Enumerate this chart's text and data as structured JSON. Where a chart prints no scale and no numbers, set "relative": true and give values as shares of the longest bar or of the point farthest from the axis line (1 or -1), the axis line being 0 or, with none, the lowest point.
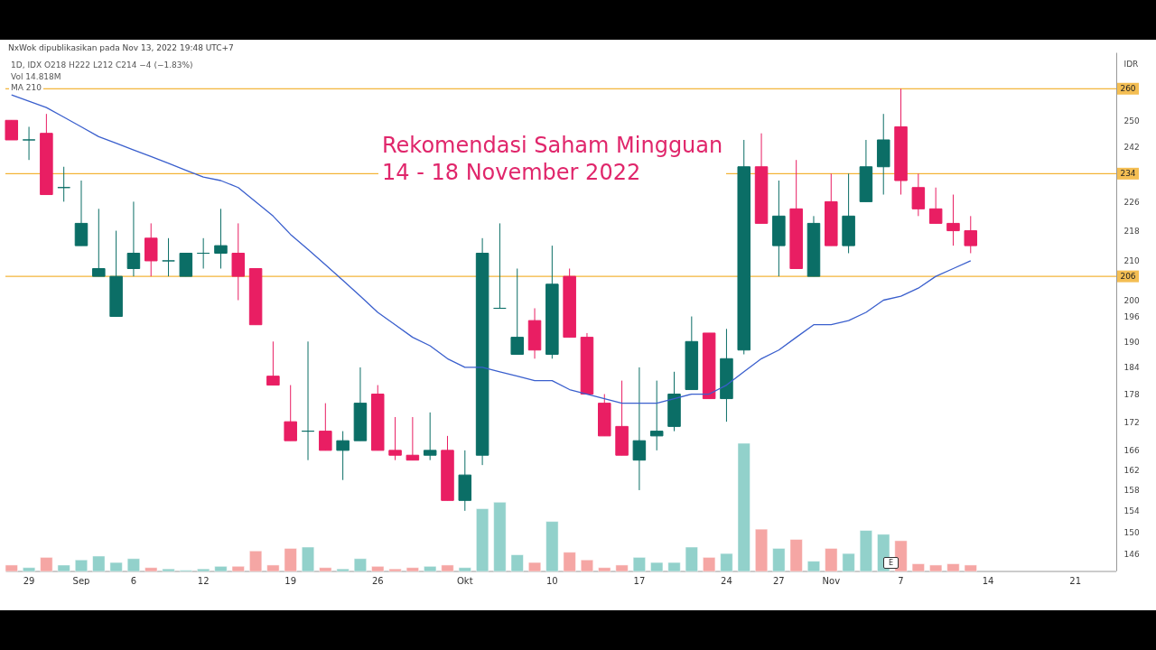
{
  "chart_data": [
    {
      "type": "candlestick",
      "title": "Rekomendasi Saham Mingguan",
      "subtitle": "14 - 18 November 2022",
      "ylabel": "IDR",
      "categories": [
        null,
        "29",
        null,
        null,
        "Sep",
        null,
        null,
        "6",
        null,
        null,
        null,
        "12",
        null,
        null,
        null,
        null,
        "19",
        null,
        null,
        null,
        null,
        "26",
        null,
        null,
        null,
        null,
        "Okt",
        null,
        null,
        null,
        null,
        "10",
        null,
        null,
        null,
        null,
        "17",
        null,
        null,
        null,
        null,
        "24",
        null,
        null,
        "27",
        null,
        null,
        "Nov",
        null,
        null,
        null,
        "7",
        null,
        null,
        null,
        null,
        "14",
        null,
        null,
        null,
        null,
        "21",
        null,
        null
      ],
      "ohlc": [
        [
          250,
          250,
          244,
          244
        ],
        [
          244,
          248,
          238,
          244
        ],
        [
          246,
          252,
          228,
          228
        ],
        [
          230,
          236,
          226,
          230
        ],
        [
          214,
          232,
          214,
          220
        ],
        [
          206,
          224,
          206,
          208
        ],
        [
          196,
          218,
          196,
          206
        ],
        [
          208,
          226,
          206,
          212
        ],
        [
          216,
          220,
          206,
          210
        ],
        [
          210,
          216,
          206,
          210
        ],
        [
          206,
          212,
          206,
          212
        ],
        [
          212,
          216,
          208,
          212
        ],
        [
          212,
          224,
          208,
          214
        ],
        [
          212,
          220,
          200,
          206
        ],
        [
          208,
          208,
          194,
          194
        ],
        [
          182,
          190,
          180,
          180
        ],
        [
          172,
          180,
          168,
          168
        ],
        [
          170,
          190,
          164,
          170
        ],
        [
          170,
          176,
          166,
          166
        ],
        [
          166,
          170,
          160,
          168
        ],
        [
          168,
          184,
          168,
          176
        ],
        [
          178,
          180,
          166,
          166
        ],
        [
          166,
          173,
          164,
          165
        ],
        [
          165,
          173,
          164,
          164
        ],
        [
          165,
          174,
          164,
          166
        ],
        [
          166,
          169,
          156,
          156
        ],
        [
          156,
          166,
          154,
          161
        ],
        [
          165,
          216,
          163,
          212
        ],
        [
          198,
          220,
          198,
          198
        ],
        [
          187,
          208,
          187,
          191
        ],
        [
          195,
          198,
          186,
          188
        ],
        [
          187,
          214,
          186,
          204
        ],
        [
          206,
          208,
          191,
          191
        ],
        [
          191,
          192,
          178,
          178
        ],
        [
          176,
          178,
          169,
          169
        ],
        [
          171,
          181,
          165,
          165
        ],
        [
          164,
          184,
          158,
          168
        ],
        [
          169,
          181,
          166,
          170
        ],
        [
          171,
          183,
          170,
          178
        ],
        [
          179,
          196,
          179,
          190
        ],
        [
          192,
          192,
          177,
          177
        ],
        [
          177,
          193,
          172,
          186
        ],
        [
          188,
          244,
          187,
          236
        ],
        [
          236,
          246,
          220,
          220
        ],
        [
          214,
          232,
          206,
          222
        ],
        [
          224,
          238,
          208,
          208
        ],
        [
          206,
          222,
          206,
          220
        ],
        [
          226,
          234,
          214,
          214
        ],
        [
          214,
          234,
          212,
          222
        ],
        [
          226,
          244,
          226,
          236
        ],
        [
          236,
          252,
          228,
          244
        ],
        [
          248,
          260,
          228,
          232
        ],
        [
          230,
          234,
          222,
          224
        ],
        [
          224,
          230,
          220,
          220
        ],
        [
          220,
          228,
          214,
          218
        ],
        [
          218,
          222,
          212,
          214
        ],
        null,
        null,
        null,
        null,
        null,
        null,
        null,
        null
      ],
      "colors": [
        "#e91e63",
        "#0b6e66",
        "#e91e63",
        "#0b6e66",
        "#0b6e66",
        "#0b6e66",
        "#0b6e66",
        "#0b6e66",
        "#e91e63",
        "#0b6e66",
        "#0b6e66",
        "#0b6e66",
        "#0b6e66",
        "#e91e63",
        "#e91e63",
        "#e91e63",
        "#e91e63",
        "#0b6e66",
        "#e91e63",
        "#0b6e66",
        "#0b6e66",
        "#e91e63",
        "#e91e63",
        "#e91e63",
        "#0b6e66",
        "#e91e63",
        "#0b6e66",
        "#0b6e66",
        "#0b6e66",
        "#0b6e66",
        "#e91e63",
        "#0b6e66",
        "#e91e63",
        "#e91e63",
        "#e91e63",
        "#e91e63",
        "#0b6e66",
        "#0b6e66",
        "#0b6e66",
        "#0b6e66",
        "#e91e63",
        "#0b6e66",
        "#0b6e66",
        "#e91e63",
        "#0b6e66",
        "#e91e63",
        "#0b6e66",
        "#e91e63",
        "#0b6e66",
        "#0b6e66",
        "#0b6e66",
        "#e91e63",
        "#e91e63",
        "#e91e63",
        "#e91e63",
        "#e91e63",
        null,
        null,
        null,
        null,
        null,
        null,
        null,
        null
      ],
      "series": [
        {
          "type": "line",
          "color": "#3a5fcd",
          "values": [
            258,
            256,
            254,
            251,
            248,
            245,
            243,
            241,
            239,
            237,
            235,
            233,
            232,
            230,
            226,
            222,
            217,
            213,
            209,
            205,
            201,
            197,
            194,
            191,
            189,
            186,
            184,
            184,
            183,
            182,
            181,
            181,
            179,
            178,
            177,
            176,
            176,
            176,
            177,
            178,
            178,
            180,
            183,
            186,
            188,
            191,
            194,
            194,
            195,
            197,
            200,
            201,
            203,
            206,
            208,
            210,
            null,
            null,
            null,
            null,
            null,
            null,
            null,
            null
          ]
        }
      ],
      "log": true,
      "ylim": [
        143,
        272
      ],
      "yticks": [
        146,
        150,
        154,
        158,
        162,
        166,
        172,
        178,
        184,
        190,
        196,
        200,
        210,
        218,
        226,
        242,
        250
      ],
      "ref_lines": [
        {
          "axis": "y",
          "value": 260,
          "label": "260",
          "color": "#f0a30a"
        },
        {
          "axis": "y",
          "value": 234,
          "label": "234",
          "color": "#f0a30a"
        },
        {
          "axis": "y",
          "value": 206,
          "label": "206",
          "color": "#f0a30a"
        }
      ],
      "annotations": [
        "NxWok dipublikasikan pada Nov 13, 2022 19:48 UTC+7",
        "1D, IDX  O218  H222  L212  C214  −4 (−1.83%)",
        "Vol  14.818M",
        "MA  210",
        "E"
      ]
    },
    {
      "type": "bar",
      "relative": true,
      "categories": [
        null,
        null,
        null,
        null,
        null,
        null,
        null,
        null,
        null,
        null,
        null,
        null,
        null,
        null,
        null,
        null,
        null,
        null,
        null,
        null,
        null,
        null,
        null,
        null,
        null,
        null,
        null,
        null,
        null,
        null,
        null,
        null,
        null,
        null,
        null,
        null,
        null,
        null,
        null,
        null,
        null,
        null,
        null,
        null,
        null,
        null,
        null,
        null,
        null,
        null,
        null,
        null,
        null,
        null,
        null,
        null,
        null,
        null,
        null,
        null,
        null,
        null,
        null,
        null
      ],
      "values": [
        0.05,
        0.03,
        0.11,
        0.05,
        0.09,
        0.12,
        0.07,
        0.1,
        0.03,
        0.02,
        0.01,
        0.02,
        0.04,
        0.04,
        0.16,
        0.05,
        0.18,
        0.19,
        0.03,
        0.02,
        0.1,
        0.04,
        0.02,
        0.03,
        0.04,
        0.05,
        0.03,
        0.49,
        0.54,
        0.13,
        0.07,
        0.39,
        0.15,
        0.09,
        0.03,
        0.05,
        0.11,
        0.07,
        0.07,
        0.19,
        0.11,
        0.14,
        1,
        0.33,
        0.18,
        0.25,
        0.08,
        0.18,
        0.14,
        0.32,
        0.29,
        0.24,
        0.06,
        0.05,
        0.06,
        0.05,
        null,
        null,
        null,
        null,
        null,
        null,
        null,
        null
      ],
      "colors": [
        "#f5a6a4",
        "#92d1cb",
        "#f5a6a4",
        "#92d1cb",
        "#92d1cb",
        "#92d1cb",
        "#92d1cb",
        "#92d1cb",
        "#f5a6a4",
        "#92d1cb",
        "#92d1cb",
        "#92d1cb",
        "#92d1cb",
        "#f5a6a4",
        "#f5a6a4",
        "#f5a6a4",
        "#f5a6a4",
        "#92d1cb",
        "#f5a6a4",
        "#92d1cb",
        "#92d1cb",
        "#f5a6a4",
        "#f5a6a4",
        "#f5a6a4",
        "#92d1cb",
        "#f5a6a4",
        "#92d1cb",
        "#92d1cb",
        "#92d1cb",
        "#92d1cb",
        "#f5a6a4",
        "#92d1cb",
        "#f5a6a4",
        "#f5a6a4",
        "#f5a6a4",
        "#f5a6a4",
        "#92d1cb",
        "#92d1cb",
        "#92d1cb",
        "#92d1cb",
        "#f5a6a4",
        "#92d1cb",
        "#92d1cb",
        "#f5a6a4",
        "#92d1cb",
        "#f5a6a4",
        "#92d1cb",
        "#f5a6a4",
        "#92d1cb",
        "#92d1cb",
        "#92d1cb",
        "#f5a6a4",
        "#f5a6a4",
        "#f5a6a4",
        "#f5a6a4",
        "#f5a6a4",
        null,
        null,
        null,
        null,
        null,
        null,
        null,
        null
      ]
    }
  ]
}
